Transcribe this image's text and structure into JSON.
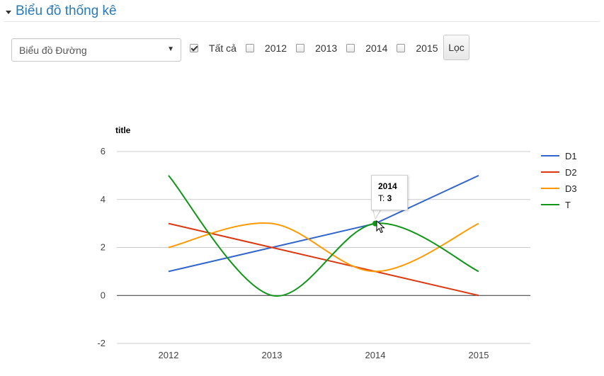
{
  "header": {
    "title": "Biểu đồ thống kê"
  },
  "controls": {
    "chart_type_selected": "Biểu đồ Đường",
    "checkboxes": [
      {
        "label": "Tất cả",
        "checked": true
      },
      {
        "label": "2012",
        "checked": false
      },
      {
        "label": "2013",
        "checked": false
      },
      {
        "label": "2014",
        "checked": false
      },
      {
        "label": "2015",
        "checked": false
      }
    ],
    "filter_button": "Lọc"
  },
  "tooltip": {
    "title": "2014",
    "series": "T",
    "value": "3"
  },
  "chart_data": {
    "type": "line",
    "title": "title",
    "categories": [
      "2012",
      "2013",
      "2014",
      "2015"
    ],
    "ylim": [
      -2,
      6
    ],
    "yticks": [
      -2,
      0,
      2,
      4,
      6
    ],
    "grid": true,
    "legend_position": "right",
    "series": [
      {
        "name": "D1",
        "values": [
          1,
          2,
          3,
          5
        ],
        "color": "#3366cc",
        "curve": false
      },
      {
        "name": "D2",
        "values": [
          3,
          2,
          1,
          0
        ],
        "color": "#dc3912",
        "curve": false
      },
      {
        "name": "D3",
        "values": [
          2,
          3,
          1,
          3
        ],
        "color": "#ff9900",
        "curve": true
      },
      {
        "name": "T",
        "values": [
          5,
          0,
          3,
          1
        ],
        "color": "#109618",
        "curve": true
      }
    ],
    "highlight": {
      "series": "T",
      "category": "2014"
    }
  }
}
